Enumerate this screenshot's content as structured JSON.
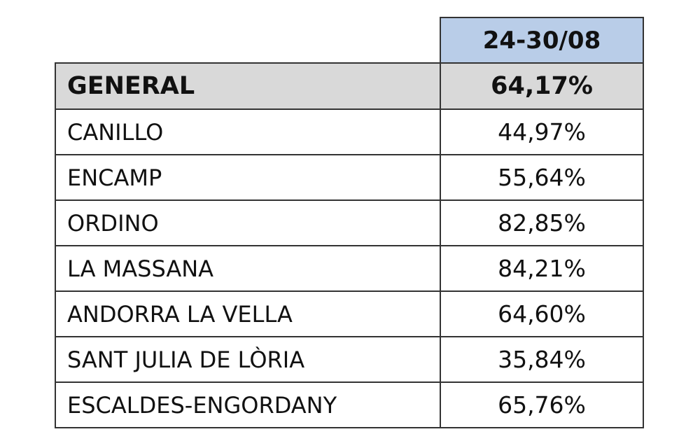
{
  "table": {
    "column_header": "24-30/08",
    "rows": [
      {
        "name": "GENERAL",
        "value": "64,17%"
      },
      {
        "name": "CANILLO",
        "value": "44,97%"
      },
      {
        "name": "ENCAMP",
        "value": "55,64%"
      },
      {
        "name": "ORDINO",
        "value": "82,85%"
      },
      {
        "name": "LA MASSANA",
        "value": "84,21%"
      },
      {
        "name": "ANDORRA LA VELLA",
        "value": "64,60%"
      },
      {
        "name": "SANT JULIA DE LÒRIA",
        "value": "35,84%"
      },
      {
        "name": "ESCALDES-ENGORDANY",
        "value": "65,76%"
      }
    ],
    "colors": {
      "header_background": "#b9cde8",
      "general_row_background": "#d9d9d9",
      "border": "#333333"
    }
  }
}
